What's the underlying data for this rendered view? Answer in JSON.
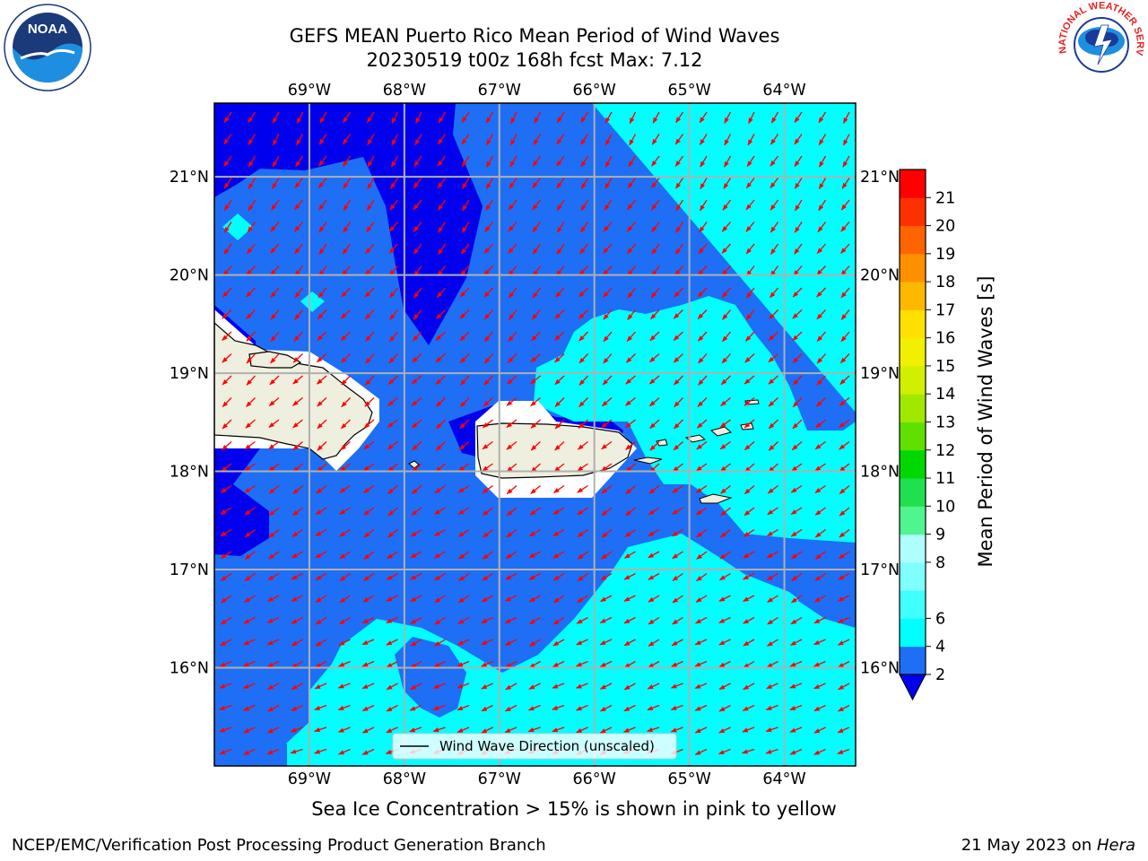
{
  "header": {
    "title_line1": "GEFS MEAN Puerto Rico Mean Period of Wind Waves",
    "title_line2": "20230519 t00z 168h fcst   Max: 7.12"
  },
  "map": {
    "lon_labels": [
      "69°W",
      "68°W",
      "67°W",
      "66°W",
      "65°W",
      "64°W"
    ],
    "lon_values": [
      -69,
      -68,
      -67,
      -66,
      -65,
      -64
    ],
    "lat_labels": [
      "21°N",
      "20°N",
      "19°N",
      "18°N",
      "17°N",
      "16°N"
    ],
    "lat_values": [
      21,
      20,
      19,
      18,
      17,
      16
    ],
    "lon_range": [
      -70.0,
      -63.25
    ],
    "lat_range": [
      15.0,
      21.75
    ],
    "legend_label": "Wind Wave Direction (unscaled)",
    "arrow_color": "#ff0000",
    "land_color": "#efefdf",
    "colors": {
      "deep_blue": "#0000ee",
      "blue": "#1e6ff5",
      "cyan": "#00ffff",
      "light_cyan": "#66ffff"
    }
  },
  "colorbar": {
    "label": "Mean Period of Wind Waves [s]",
    "ticks": [
      "21",
      "20",
      "19",
      "18",
      "17",
      "16",
      "15",
      "14",
      "13",
      "12",
      "11",
      "10",
      "9",
      "8",
      "6",
      "4",
      "2"
    ],
    "levels": [
      2,
      4,
      6,
      7,
      8,
      9,
      10,
      11,
      12,
      13,
      14,
      15,
      16,
      17,
      18,
      19,
      20,
      21
    ],
    "colors": [
      "#1e6ff5",
      "#00ffff",
      "#40ffff",
      "#80ffff",
      "#b0ffff",
      "#50f590",
      "#20e050",
      "#00d800",
      "#60e000",
      "#a0e800",
      "#d0f000",
      "#f0f000",
      "#ffe000",
      "#ffb800",
      "#ff9000",
      "#ff6400",
      "#ff3000",
      "#ff0000"
    ],
    "under_color": "#0000ee"
  },
  "caption": "Sea Ice Concentration > 15% is shown in pink to yellow",
  "footer": {
    "left": "NCEP/EMC/Verification Post Processing Product Generation Branch",
    "right_prefix": "21 May 2023 on ",
    "right_machine": "Hera"
  },
  "logos": {
    "noaa_text": "NOAA",
    "nws_text": "NATIONAL WEATHER SERVICE"
  }
}
